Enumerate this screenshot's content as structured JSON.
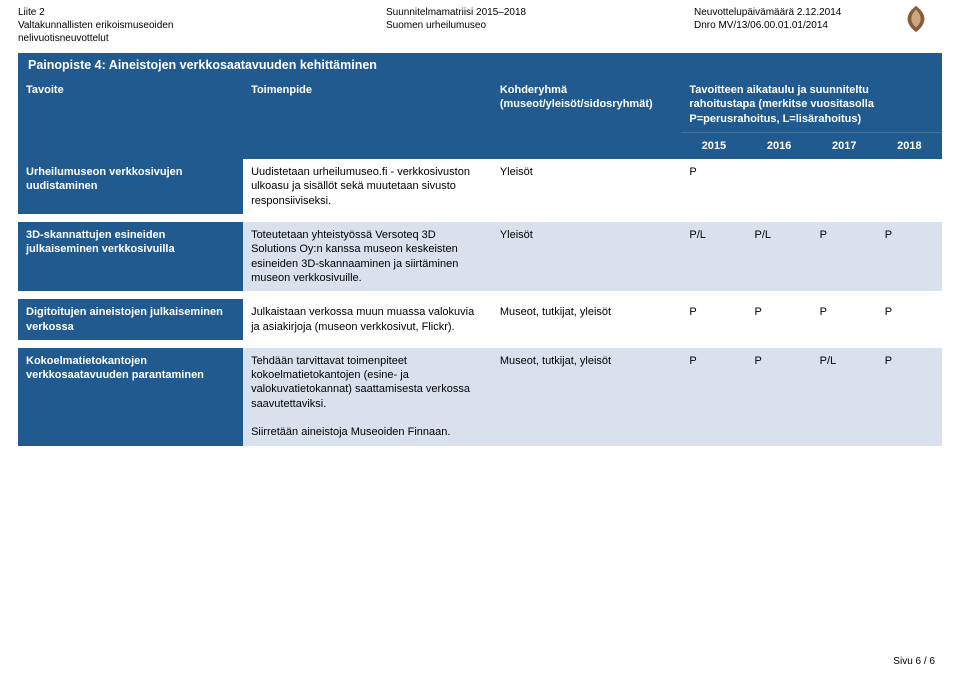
{
  "header": {
    "left_line1": "Liite 2",
    "left_line2": "Valtakunnallisten erikoismuseoiden nelivuotisneuvottelut",
    "center_line1": "Suunnitelmamatriisi 2015–2018",
    "center_line2": "Suomen urheilumuseo",
    "right_line1": "Neuvottelupäivämäärä 2.12.2014",
    "right_line2": "Dnro MV/13/06.00.01.01/2014"
  },
  "section_title": "Painopiste 4: Aineistojen verkkosaatavuuden kehittäminen",
  "columns": {
    "tavoite": "Tavoite",
    "toimenpide": "Toimenpide",
    "kohderyhma": "Kohderyhmä (museot/yleisöt/sidosryhmät)",
    "aikataulu": "Tavoitteen aikataulu ja suunniteltu rahoitustapa (merkitse vuositasolla P=perusrahoitus, L=lisärahoitus)",
    "years": [
      "2015",
      "2016",
      "2017",
      "2018"
    ]
  },
  "rows": [
    {
      "tavoite": "Urheilumuseon verkkosivujen uudistaminen",
      "toimenpide": "Uudistetaan urheilumuseo.fi - verkkosivuston ulkoasu ja sisällöt sekä muutetaan sivusto responsiiviseksi.",
      "kohderyhma": "Yleisöt",
      "y2015": "P",
      "y2016": "",
      "y2017": "",
      "y2018": "",
      "alt": false
    },
    {
      "tavoite": "3D-skannattujen esineiden julkaiseminen verkkosivuilla",
      "toimenpide": "Toteutetaan yhteistyössä Versoteq 3D Solutions Oy:n kanssa museon keskeisten esineiden 3D-skannaaminen ja siirtäminen museon verkkosivuille.",
      "kohderyhma": "Yleisöt",
      "y2015": "P/L",
      "y2016": "P/L",
      "y2017": "P",
      "y2018": "P",
      "alt": true
    },
    {
      "tavoite": "Digitoitujen aineistojen julkaiseminen verkossa",
      "toimenpide": "Julkaistaan verkossa muun muassa valokuvia ja asiakirjoja (museon verkkosivut, Flickr).",
      "kohderyhma": "Museot, tutkijat, yleisöt",
      "y2015": "P",
      "y2016": "P",
      "y2017": "P",
      "y2018": "P",
      "alt": false
    },
    {
      "tavoite": "Kokoelmatietokantojen verkkosaatavuuden parantaminen",
      "toimenpide": "Tehdään tarvittavat toimenpiteet kokoelmatietokantojen (esine- ja valokuvatietokannat) saattamisesta verkossa saavutettaviksi.\n\nSiirretään aineistoja Museoiden Finnaan.",
      "kohderyhma": "Museot, tutkijat, yleisöt",
      "y2015": "P",
      "y2016": "P",
      "y2017": "P/L",
      "y2018": "P",
      "alt": true
    }
  ],
  "footer": "Sivu 6 / 6",
  "colors": {
    "header_bg": "#215a8e",
    "alt_bg": "#d9e2ec"
  }
}
